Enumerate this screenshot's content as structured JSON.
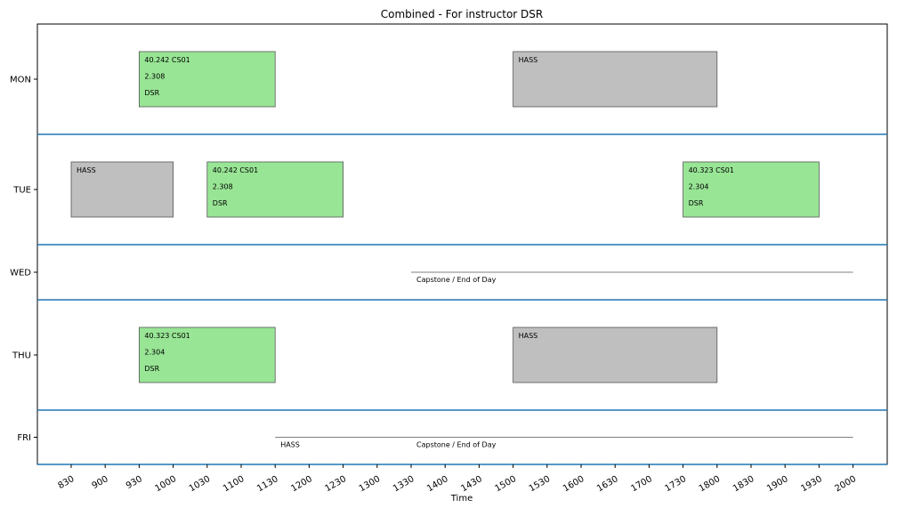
{
  "chart_data": {
    "type": "timetable",
    "title": "Combined - For instructor DSR",
    "xlabel": "Time",
    "x_ticks": [
      "830",
      "900",
      "930",
      "1000",
      "1030",
      "1100",
      "1130",
      "1200",
      "1230",
      "1300",
      "1330",
      "1400",
      "1430",
      "1500",
      "1530",
      "1600",
      "1630",
      "1700",
      "1730",
      "1800",
      "1830",
      "1900",
      "1930",
      "2000"
    ],
    "days": [
      "MON",
      "TUE",
      "WED",
      "THU",
      "FRI"
    ],
    "blocks": [
      {
        "day": "MON",
        "start": 930,
        "end": 1130,
        "lines": [
          "40.242 CS01",
          "2.308",
          "DSR"
        ],
        "color": "#98e595"
      },
      {
        "day": "MON",
        "start": 1500,
        "end": 1800,
        "lines": [
          "HASS"
        ],
        "color": "#bfbfbf"
      },
      {
        "day": "TUE",
        "start": 830,
        "end": 1000,
        "lines": [
          "HASS"
        ],
        "color": "#bfbfbf"
      },
      {
        "day": "TUE",
        "start": 1030,
        "end": 1230,
        "lines": [
          "40.242 CS01",
          "2.308",
          "DSR"
        ],
        "color": "#98e595"
      },
      {
        "day": "TUE",
        "start": 1730,
        "end": 1930,
        "lines": [
          "40.323 CS01",
          "2.304",
          "DSR"
        ],
        "color": "#98e595"
      },
      {
        "day": "THU",
        "start": 930,
        "end": 1130,
        "lines": [
          "40.323 CS01",
          "2.304",
          "DSR"
        ],
        "color": "#98e595"
      },
      {
        "day": "THU",
        "start": 1500,
        "end": 1800,
        "lines": [
          "HASS"
        ],
        "color": "#bfbfbf"
      }
    ],
    "lines": [
      {
        "day": "WED",
        "start": 1330,
        "end": 2000,
        "label": "Capstone / End of Day"
      },
      {
        "day": "FRI",
        "start": 1130,
        "end": 2000,
        "labels": [
          {
            "at": 1130,
            "text": "HASS"
          },
          {
            "at": 1330,
            "text": "Capstone / End of Day"
          }
        ]
      }
    ],
    "colors": {
      "class": "#98e595",
      "hass": "#bfbfbf",
      "divider": "#1f77b4",
      "block_border": "#555555"
    },
    "grid": false
  }
}
